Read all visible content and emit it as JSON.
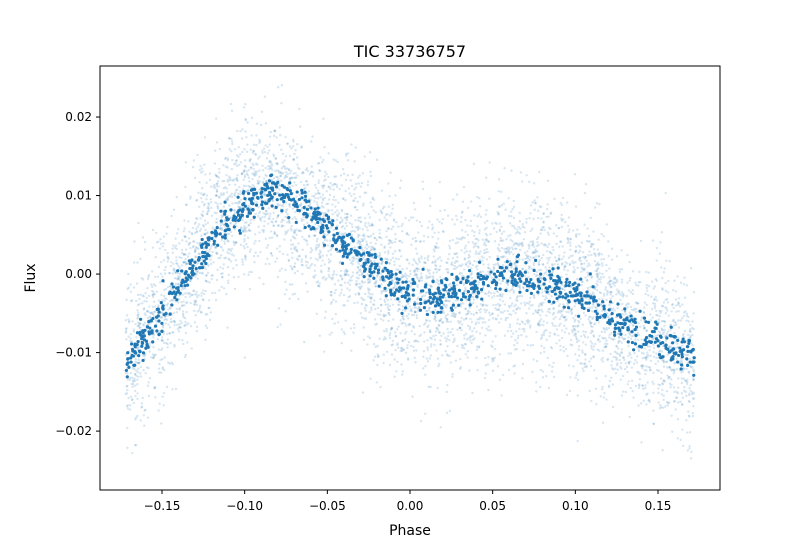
{
  "chart_data": {
    "type": "scatter",
    "title": "TIC 33736757",
    "xlabel": "Phase",
    "ylabel": "Flux",
    "xlim": [
      -0.1875,
      0.1875
    ],
    "ylim": [
      -0.0275,
      0.0265
    ],
    "x_ticks": [
      -0.15,
      -0.1,
      -0.05,
      0.0,
      0.05,
      0.1,
      0.15
    ],
    "x_tick_labels": [
      "−0.15",
      "−0.10",
      "−0.05",
      "0.00",
      "0.05",
      "0.10",
      "0.15"
    ],
    "y_ticks": [
      -0.02,
      -0.01,
      0.0,
      0.01,
      0.02
    ],
    "y_tick_labels": [
      "−0.02",
      "−0.01",
      "0.00",
      "0.01",
      "0.02"
    ],
    "grid": false,
    "legend": "none",
    "phase_range": [
      -0.172,
      0.172
    ],
    "series": [
      {
        "role": "raw",
        "color": "#1f77b4",
        "opacity": 0.18,
        "count": 5200,
        "scatter_sd": 0.0052,
        "trend": [
          [
            -0.172,
            -0.012
          ],
          [
            -0.16,
            -0.008
          ],
          [
            -0.14,
            -0.002
          ],
          [
            -0.12,
            0.005
          ],
          [
            -0.1,
            0.0095
          ],
          [
            -0.085,
            0.011
          ],
          [
            -0.07,
            0.009
          ],
          [
            -0.05,
            0.006
          ],
          [
            -0.03,
            0.002
          ],
          [
            -0.01,
            -0.001
          ],
          [
            0.0,
            -0.0025
          ],
          [
            0.02,
            -0.0025
          ],
          [
            0.04,
            -0.001
          ],
          [
            0.06,
            0.0
          ],
          [
            0.08,
            -0.001
          ],
          [
            0.1,
            -0.0025
          ],
          [
            0.12,
            -0.005
          ],
          [
            0.14,
            -0.008
          ],
          [
            0.16,
            -0.0095
          ],
          [
            0.172,
            -0.011
          ]
        ]
      },
      {
        "role": "binned",
        "color": "#1f77b4",
        "opacity": 1.0,
        "count": 1000,
        "scatter_sd": 0.0011,
        "trend": [
          [
            -0.172,
            -0.011
          ],
          [
            -0.16,
            -0.008
          ],
          [
            -0.14,
            -0.002
          ],
          [
            -0.12,
            0.0045
          ],
          [
            -0.1,
            0.0085
          ],
          [
            -0.085,
            0.0105
          ],
          [
            -0.07,
            0.0095
          ],
          [
            -0.05,
            0.006
          ],
          [
            -0.03,
            0.002
          ],
          [
            -0.01,
            -0.001
          ],
          [
            0.0,
            -0.0025
          ],
          [
            0.02,
            -0.003
          ],
          [
            0.04,
            -0.0015
          ],
          [
            0.06,
            0.0
          ],
          [
            0.08,
            -0.001
          ],
          [
            0.1,
            -0.0025
          ],
          [
            0.12,
            -0.005
          ],
          [
            0.14,
            -0.008
          ],
          [
            0.16,
            -0.0095
          ],
          [
            0.172,
            -0.011
          ]
        ]
      }
    ]
  }
}
